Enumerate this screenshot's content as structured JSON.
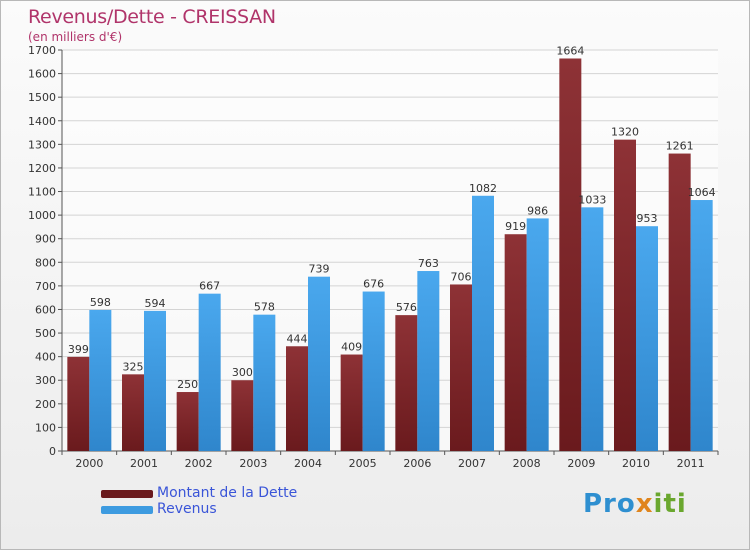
{
  "title": "Revenus/Dette - CREISSAN",
  "subtitle": "(en milliers d'€)",
  "colors": {
    "debt": "#6a1a1d",
    "revenue": "#3d9be0",
    "title": "#b0346a",
    "legend_text": "#3a55d8"
  },
  "legend": {
    "debt_label": "Montant de la Dette",
    "revenue_label": "Revenus"
  },
  "logo": {
    "text": "Proxiti"
  },
  "chart_data": {
    "type": "bar",
    "categories": [
      "2000",
      "2001",
      "2002",
      "2003",
      "2004",
      "2005",
      "2006",
      "2007",
      "2008",
      "2009",
      "2010",
      "2011"
    ],
    "series": [
      {
        "name": "Montant de la Dette",
        "values": [
          399,
          325,
          250,
          300,
          444,
          409,
          576,
          706,
          919,
          1664,
          1320,
          1261
        ]
      },
      {
        "name": "Revenus",
        "values": [
          598,
          594,
          667,
          578,
          739,
          676,
          763,
          1082,
          986,
          1033,
          953,
          1064
        ]
      }
    ],
    "ylim": [
      0,
      1700
    ],
    "yticks": [
      0,
      100,
      200,
      300,
      400,
      500,
      600,
      700,
      800,
      900,
      1000,
      1100,
      1200,
      1300,
      1400,
      1500,
      1600,
      1700
    ],
    "grid": true,
    "legend_position": "bottom-left"
  }
}
